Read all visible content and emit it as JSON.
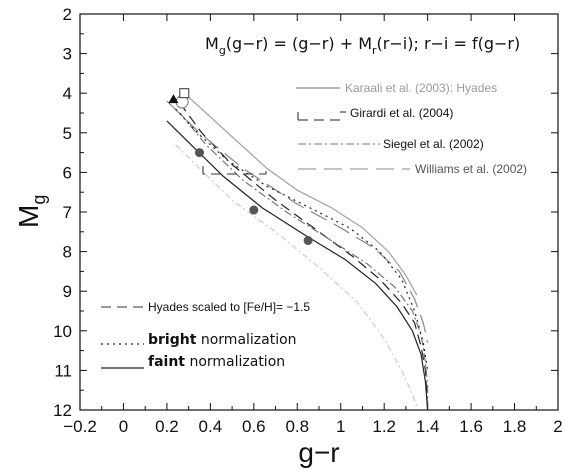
{
  "chart_data": {
    "type": "line",
    "title": "",
    "xlabel": "g−r",
    "ylabel": "M",
    "ylabel_sub": "g",
    "xlim": [
      -0.2,
      2
    ],
    "ylim": [
      12,
      2
    ],
    "y_inverted": true,
    "grid": false,
    "x_ticks": [
      -0.2,
      0,
      0.2,
      0.4,
      0.6,
      0.8,
      1,
      1.2,
      1.4,
      1.6,
      1.8,
      2
    ],
    "x_tick_labels": [
      "−0.2",
      "0",
      "0.2",
      "0.4",
      "0.6",
      "0.8",
      "1",
      "1.2",
      "1.4",
      "1.6",
      "1.8",
      "2"
    ],
    "y_ticks": [
      2,
      3,
      4,
      5,
      6,
      7,
      8,
      9,
      10,
      11,
      12
    ],
    "y_tick_labels": [
      "2",
      "3",
      "4",
      "5",
      "6",
      "7",
      "8",
      "9",
      "10",
      "11",
      "12"
    ],
    "equation": {
      "p1": "M",
      "s1": "g",
      "p2": "(g−r)  =  (g−r)  +  M",
      "s2": "r",
      "p3": "(r−i);  r−i  =  f(g−r)"
    },
    "series": [
      {
        "name": "Karaali et al. (2003): Hyades",
        "color": "#a0a0a0",
        "dash": "solid",
        "x": [
          0.26,
          0.3,
          0.36,
          0.44,
          0.54,
          0.66,
          0.8,
          0.96,
          1.1,
          1.22,
          1.3,
          1.35
        ],
        "y": [
          3.9,
          4.1,
          4.4,
          4.8,
          5.3,
          5.9,
          6.45,
          6.9,
          7.4,
          8.0,
          8.6,
          9.1
        ]
      },
      {
        "name": "Girardi et al. (2004)",
        "color": "#222222",
        "dash": "10,6",
        "x": [
          0.26,
          0.36,
          0.5,
          0.7,
          0.9,
          1.05,
          1.18,
          1.28,
          1.34,
          1.37,
          1.39,
          1.4
        ],
        "y": [
          4.25,
          5.0,
          5.8,
          6.7,
          7.5,
          8.1,
          8.7,
          9.3,
          9.8,
          10.4,
          11.0,
          12.0
        ]
      },
      {
        "name": "Siegel et al. (2002)",
        "color": "#777777",
        "dash": "8,3,2,3",
        "x": [
          0.26,
          0.38,
          0.55,
          0.75,
          0.95,
          1.12,
          1.25,
          1.33,
          1.37,
          1.39,
          1.4,
          1.4
        ],
        "y": [
          4.5,
          5.3,
          6.2,
          7.0,
          7.7,
          8.3,
          8.9,
          9.5,
          10.1,
          10.8,
          11.4,
          12.0
        ]
      },
      {
        "name": "Williams et al. (2002)",
        "color": "#888888",
        "dash": "18,8",
        "x": [
          0.2,
          0.35,
          0.55,
          0.8,
          1.0,
          1.15,
          1.27,
          1.34,
          1.38,
          1.4
        ],
        "y": [
          4.2,
          5.0,
          5.9,
          6.8,
          7.4,
          7.9,
          8.5,
          9.2,
          9.8,
          10.3
        ]
      },
      {
        "name": "Hyades scaled to [Fe/H]= −1.5",
        "color": "#cccccc",
        "dash": "6,3,2,3",
        "x": [
          0.24,
          0.35,
          0.5,
          0.7,
          0.9,
          1.08,
          1.2,
          1.28,
          1.33,
          1.35
        ],
        "y": [
          5.3,
          5.9,
          6.7,
          7.5,
          8.4,
          9.3,
          10.2,
          11.0,
          11.6,
          11.9
        ]
      },
      {
        "name": "bright normalization",
        "color": "#222222",
        "dash": "2,4",
        "x": [
          0.24,
          0.34,
          0.48,
          0.66,
          0.86,
          1.04,
          1.18,
          1.28,
          1.34,
          1.38,
          1.4
        ],
        "y": [
          4.4,
          5.0,
          5.7,
          6.35,
          6.9,
          7.4,
          8.0,
          8.7,
          9.5,
          10.3,
          11.0
        ]
      },
      {
        "name": "faint normalization",
        "color": "#222222",
        "dash": "solid",
        "x": [
          0.2,
          0.32,
          0.46,
          0.64,
          0.84,
          1.02,
          1.16,
          1.26,
          1.33,
          1.37,
          1.39,
          1.4
        ],
        "y": [
          4.7,
          5.35,
          6.1,
          6.9,
          7.6,
          8.2,
          8.8,
          9.4,
          10.0,
          10.6,
          11.3,
          12.0
        ]
      }
    ],
    "markers": {
      "circles_gray": {
        "x": [
          0.35,
          0.6,
          0.85
        ],
        "y": [
          5.5,
          6.95,
          7.72
        ],
        "color": "#555555"
      },
      "open_circle": {
        "x": 0.27,
        "y": 4.22
      },
      "open_square": {
        "x": 0.28,
        "y": 4.0
      },
      "triangle": {
        "x": 0.23,
        "y": 4.15
      }
    },
    "legend_items": [
      "Karaali et al. (2003): Hyades",
      "Girardi et al. (2004)",
      "Siegel et al. (2002)",
      "Williams et al. (2002)",
      "Hyades scaled to [Fe/H]= −1.5"
    ],
    "legend_words": {
      "bright_bold": "bright",
      "bright_rest": " normalization",
      "faint_bold": "faint",
      "faint_rest": " normalization"
    }
  }
}
